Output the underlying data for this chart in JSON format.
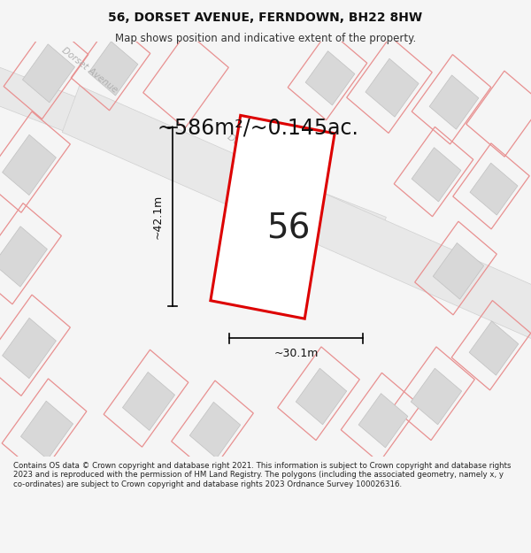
{
  "title": "56, DORSET AVENUE, FERNDOWN, BH22 8HW",
  "subtitle": "Map shows position and indicative extent of the property.",
  "area_label": "~586m²/~0.145ac.",
  "number_label": "56",
  "dim_width_label": "~30.1m",
  "dim_height_label": "~42.1m",
  "footer": "Contains OS data © Crown copyright and database right 2021. This information is subject to Crown copyright and database rights 2023 and is reproduced with the permission of HM Land Registry. The polygons (including the associated geometry, namely x, y co-ordinates) are subject to Crown copyright and database rights 2023 Ordnance Survey 100026316.",
  "bg_color": "#f5f5f5",
  "map_bg": "#ffffff",
  "building_fill": "#d8d8d8",
  "building_stroke": "#c0c0c0",
  "plot_color": "#dd0000",
  "plot_fill": "#ffffff",
  "road_label_color": "#b0b0b0",
  "pink": "#e89090",
  "road_fill": "#e8e8e8",
  "road_edge": "#d0d0d0",
  "title_fontsize": 10,
  "subtitle_fontsize": 8.5,
  "area_fontsize": 17,
  "number_fontsize": 28,
  "dim_fontsize": 9,
  "footer_fontsize": 6.2
}
